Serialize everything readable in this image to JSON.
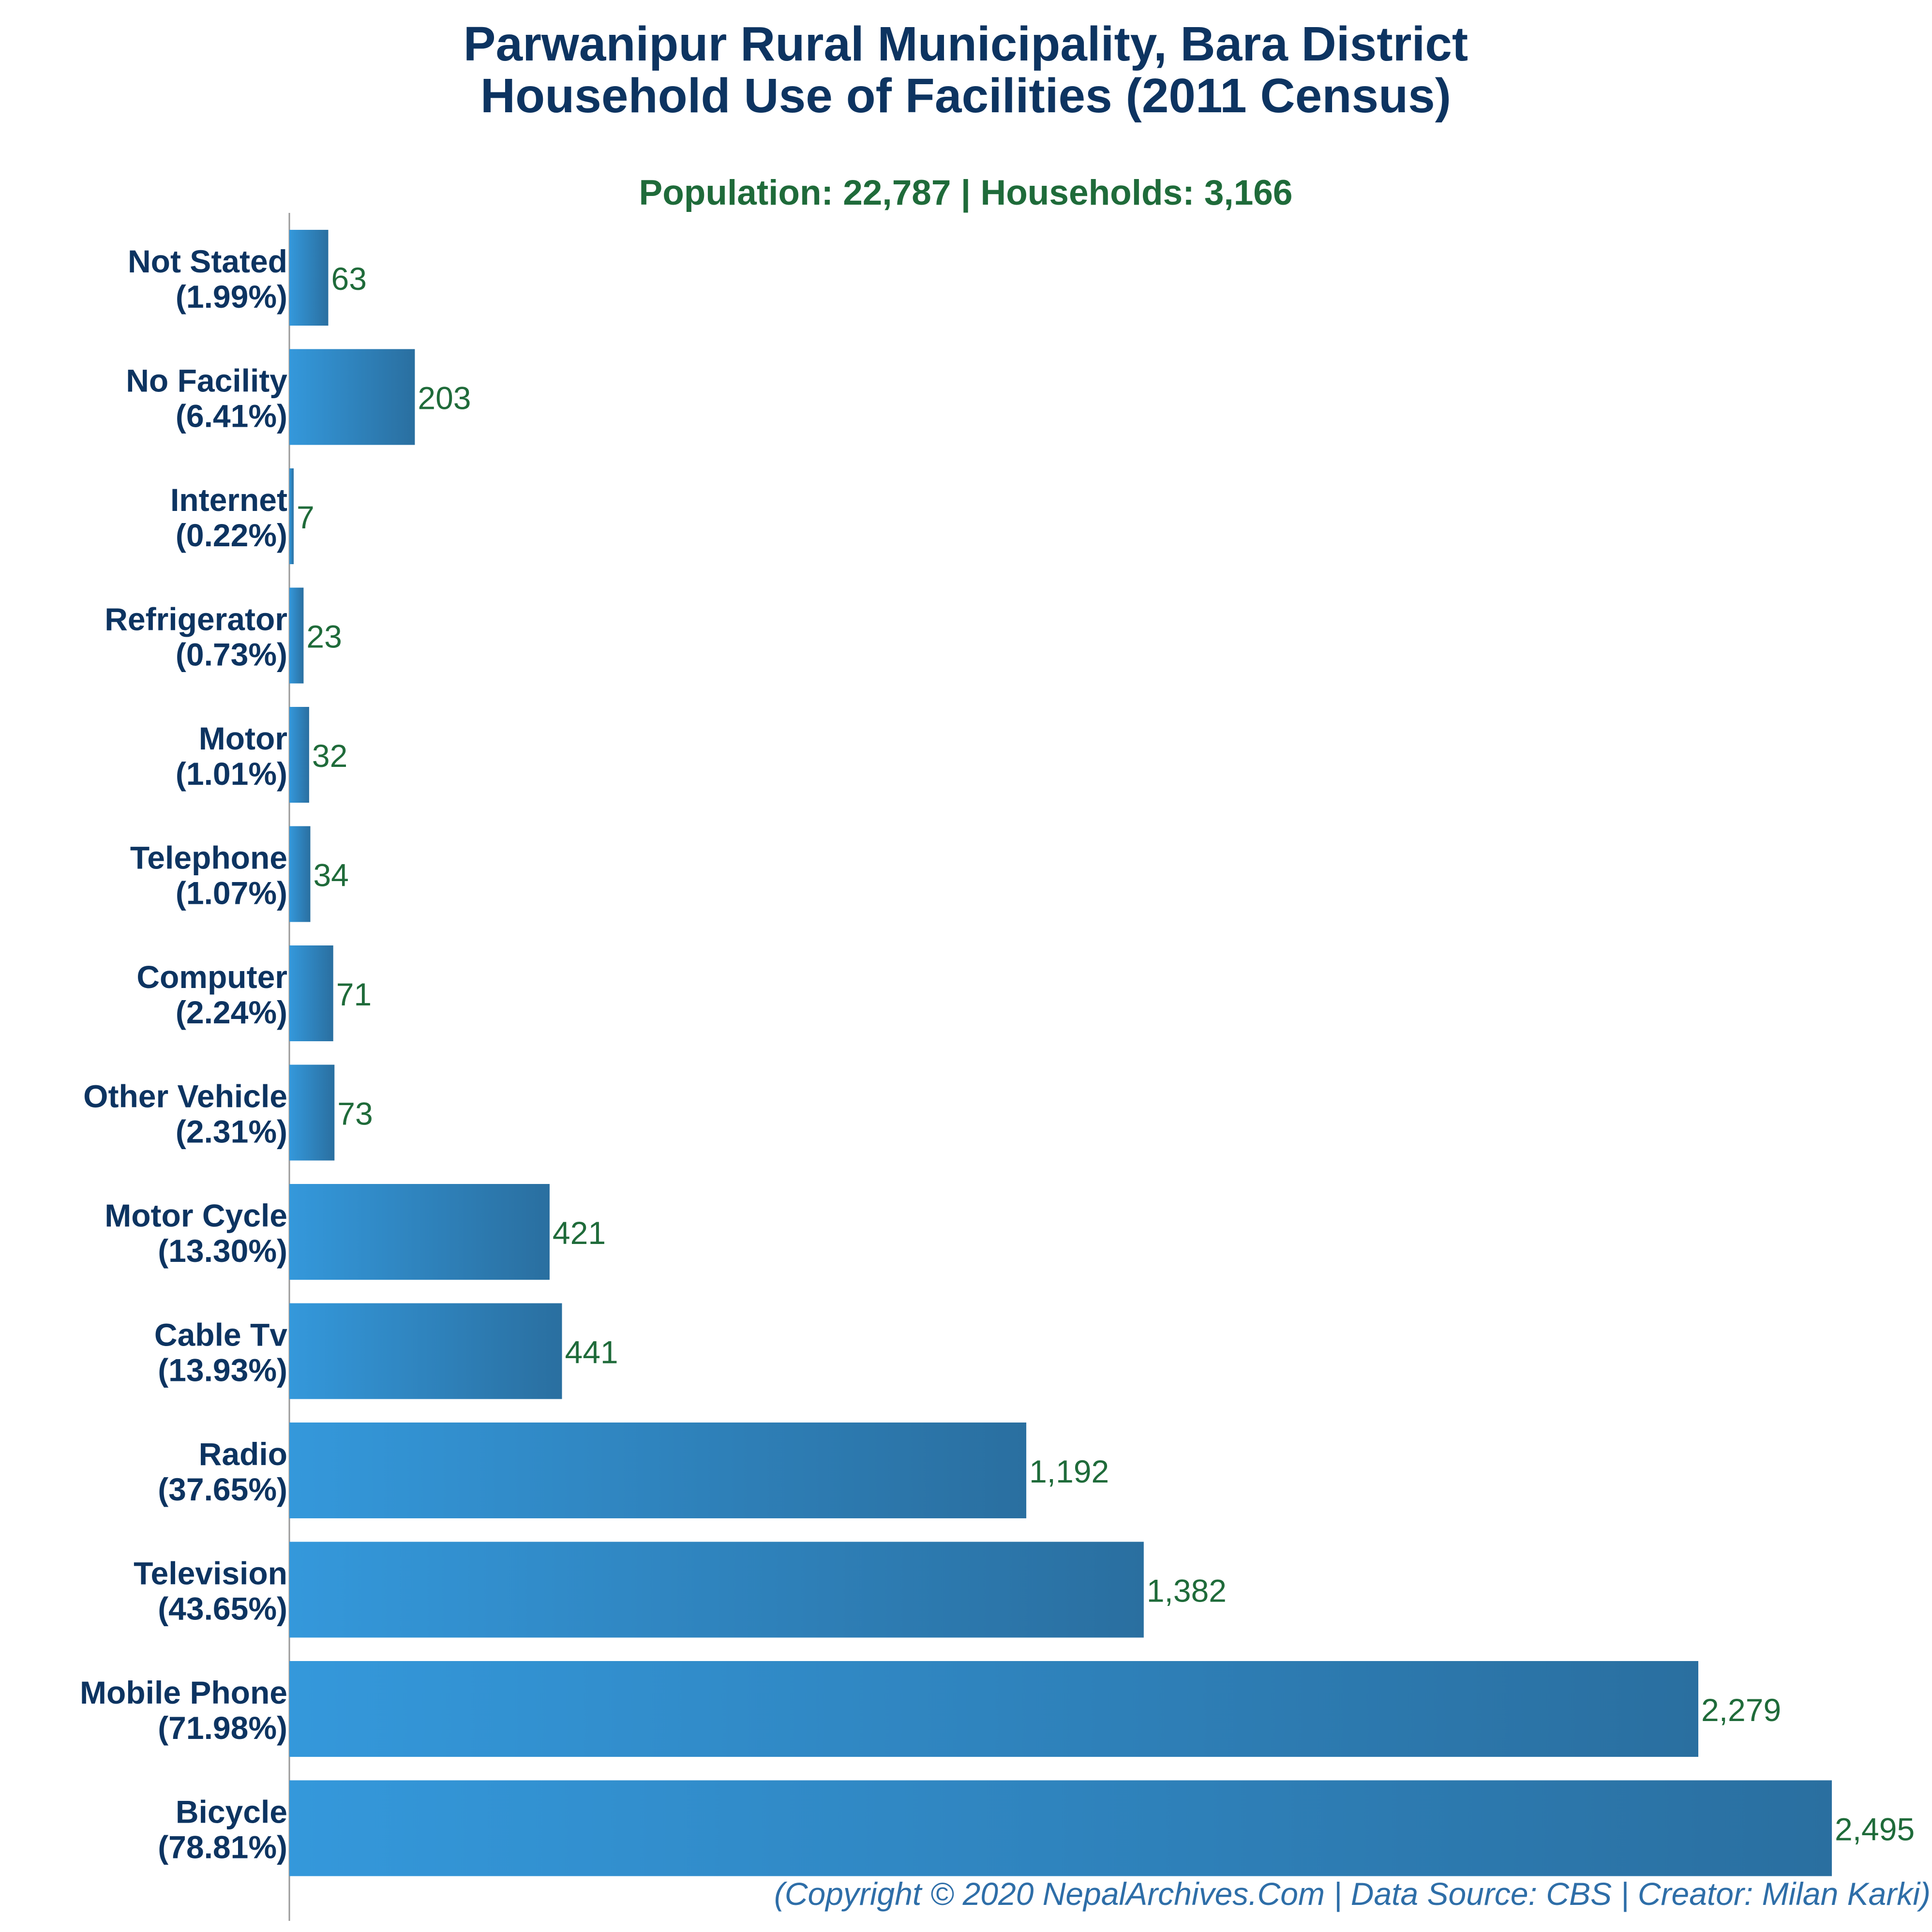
{
  "chart_data": {
    "type": "bar",
    "orientation": "horizontal",
    "title": [
      "Parwanipur Rural Municipality, Bara District",
      "Household Use of Facilities (2011 Census)"
    ],
    "subtitle": "Population: 22,787 | Households: 3,166",
    "footer": "(Copyright © 2020 NepalArchives.Com | Data Source: CBS | Creator: Milan Karki)",
    "categories": [
      "Not Stated",
      "No Facility",
      "Internet",
      "Refrigerator",
      "Motor",
      "Telephone",
      "Computer",
      "Other Vehicle",
      "Motor Cycle",
      "Cable Tv",
      "Radio",
      "Television",
      "Mobile Phone",
      "Bicycle"
    ],
    "percent_labels": [
      "(1.99%)",
      "(6.41%)",
      "(0.22%)",
      "(0.73%)",
      "(1.01%)",
      "(1.07%)",
      "(2.24%)",
      "(2.31%)",
      "(13.30%)",
      "(13.93%)",
      "(37.65%)",
      "(43.65%)",
      "(71.98%)",
      "(78.81%)"
    ],
    "values": [
      63,
      203,
      7,
      23,
      32,
      34,
      71,
      73,
      421,
      441,
      1192,
      1382,
      2279,
      2495
    ],
    "value_labels": [
      "63",
      "203",
      "7",
      "23",
      "32",
      "34",
      "71",
      "73",
      "421",
      "441",
      "1,192",
      "1,382",
      "2,279",
      "2,495"
    ],
    "xlim": [
      0,
      2495
    ],
    "grid": false,
    "legend": "none",
    "colors": {
      "bar_light": "#3498db",
      "bar_dark": "#2a6fa0",
      "title": "#0d3461",
      "subtitle": "#1f6b3a",
      "values": "#1f6b3a",
      "footer": "#2e6ea8",
      "axis": "#999999"
    }
  }
}
